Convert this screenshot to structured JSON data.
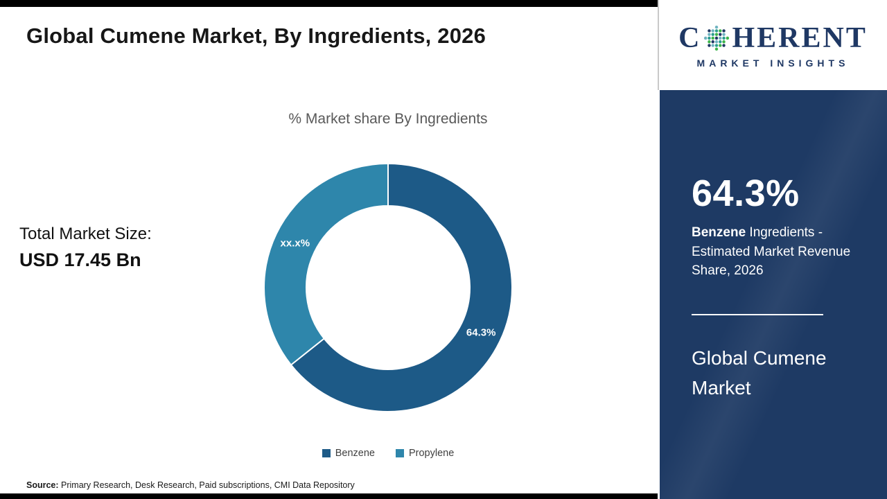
{
  "header": {
    "title": "Global Cumene Market, By Ingredients, 2026"
  },
  "chart_data": {
    "type": "pie",
    "donut": true,
    "title": "% Market share By Ingredients",
    "categories": [
      "Benzene",
      "Propylene"
    ],
    "values": [
      64.3,
      35.7
    ],
    "slice_labels": [
      "64.3%",
      "xx.x%"
    ],
    "colors": [
      "#1d5a87",
      "#2e86ab"
    ],
    "legend_position": "bottom"
  },
  "market_size": {
    "label": "Total Market Size:",
    "value": "USD 17.45 Bn"
  },
  "source": {
    "label": "Source:",
    "text": " Primary Research, Desk Research, Paid subscriptions, CMI Data Repository"
  },
  "sidebar": {
    "logo": {
      "text_start": "C",
      "text_end": "HERENT",
      "subtext": "MARKET INSIGHTS",
      "navy": "#1f3864",
      "dot_colors": [
        "#2a9d8f",
        "#3cb54a",
        "#1f3864",
        "#6fb3c0"
      ]
    },
    "panel_bg": "#1e3a64",
    "stat_value": "64.3%",
    "stat_highlight": "Benzene",
    "stat_desc": " Ingredients - Estimated Market Revenue Share, 2026",
    "panel_title": "Global Cumene Market"
  }
}
